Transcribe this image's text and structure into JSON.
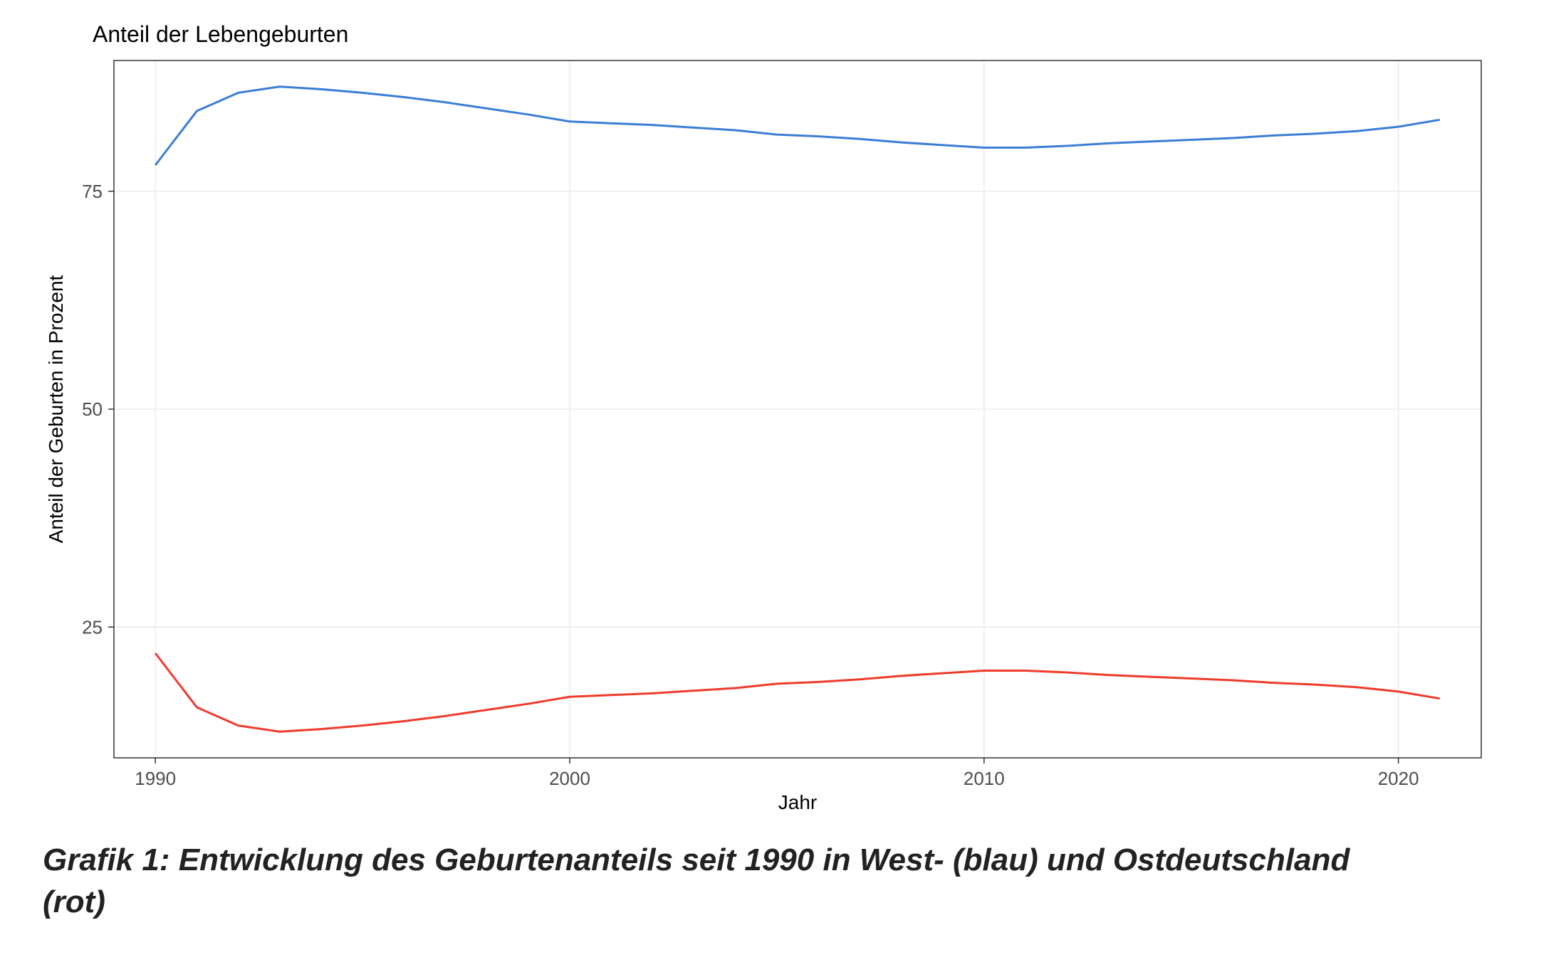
{
  "chart": {
    "type": "line",
    "title": "Anteil der Lebengeburten",
    "title_fontsize": 32,
    "xlabel": "Jahr",
    "ylabel": "Anteil der Geburten in Prozent",
    "label_fontsize": 28,
    "tick_fontsize": 26,
    "background_color": "#ffffff",
    "panel_border_color": "#000000",
    "grid_color": "#ebebeb",
    "xlim": [
      1989,
      2022
    ],
    "ylim": [
      10,
      90
    ],
    "x_ticks": [
      1990,
      2000,
      2010,
      2020
    ],
    "y_ticks": [
      25,
      50,
      75
    ],
    "line_width": 3,
    "series": [
      {
        "name": "West",
        "color": "#3a7ed6",
        "x": [
          1990,
          1991,
          1992,
          1993,
          1994,
          1995,
          1996,
          1997,
          1998,
          1999,
          2000,
          2001,
          2002,
          2003,
          2004,
          2005,
          2006,
          2007,
          2008,
          2009,
          2010,
          2011,
          2012,
          2013,
          2014,
          2015,
          2016,
          2017,
          2018,
          2019,
          2020,
          2021
        ],
        "y": [
          78.0,
          84.2,
          86.3,
          87.0,
          86.7,
          86.3,
          85.8,
          85.2,
          84.5,
          83.8,
          83.0,
          82.8,
          82.6,
          82.3,
          82.0,
          81.5,
          81.3,
          81.0,
          80.6,
          80.3,
          80.0,
          80.0,
          80.2,
          80.5,
          80.7,
          80.9,
          81.1,
          81.4,
          81.6,
          81.9,
          82.4,
          83.2
        ]
      },
      {
        "name": "Ost",
        "color": "#ef3b2c",
        "x": [
          1990,
          1991,
          1992,
          1993,
          1994,
          1995,
          1996,
          1997,
          1998,
          1999,
          2000,
          2001,
          2002,
          2003,
          2004,
          2005,
          2006,
          2007,
          2008,
          2009,
          2010,
          2011,
          2012,
          2013,
          2014,
          2015,
          2016,
          2017,
          2018,
          2019,
          2020,
          2021
        ],
        "y": [
          22.0,
          15.8,
          13.7,
          13.0,
          13.3,
          13.7,
          14.2,
          14.8,
          15.5,
          16.2,
          17.0,
          17.2,
          17.4,
          17.7,
          18.0,
          18.5,
          18.7,
          19.0,
          19.4,
          19.7,
          20.0,
          20.0,
          19.8,
          19.5,
          19.3,
          19.1,
          18.9,
          18.6,
          18.4,
          18.1,
          17.6,
          16.8
        ]
      }
    ]
  },
  "caption": "Grafik 1: Entwicklung des Geburtenanteils seit 1990 in West- (blau) und Ostdeutschland (rot)",
  "caption_fontsize": 44
}
